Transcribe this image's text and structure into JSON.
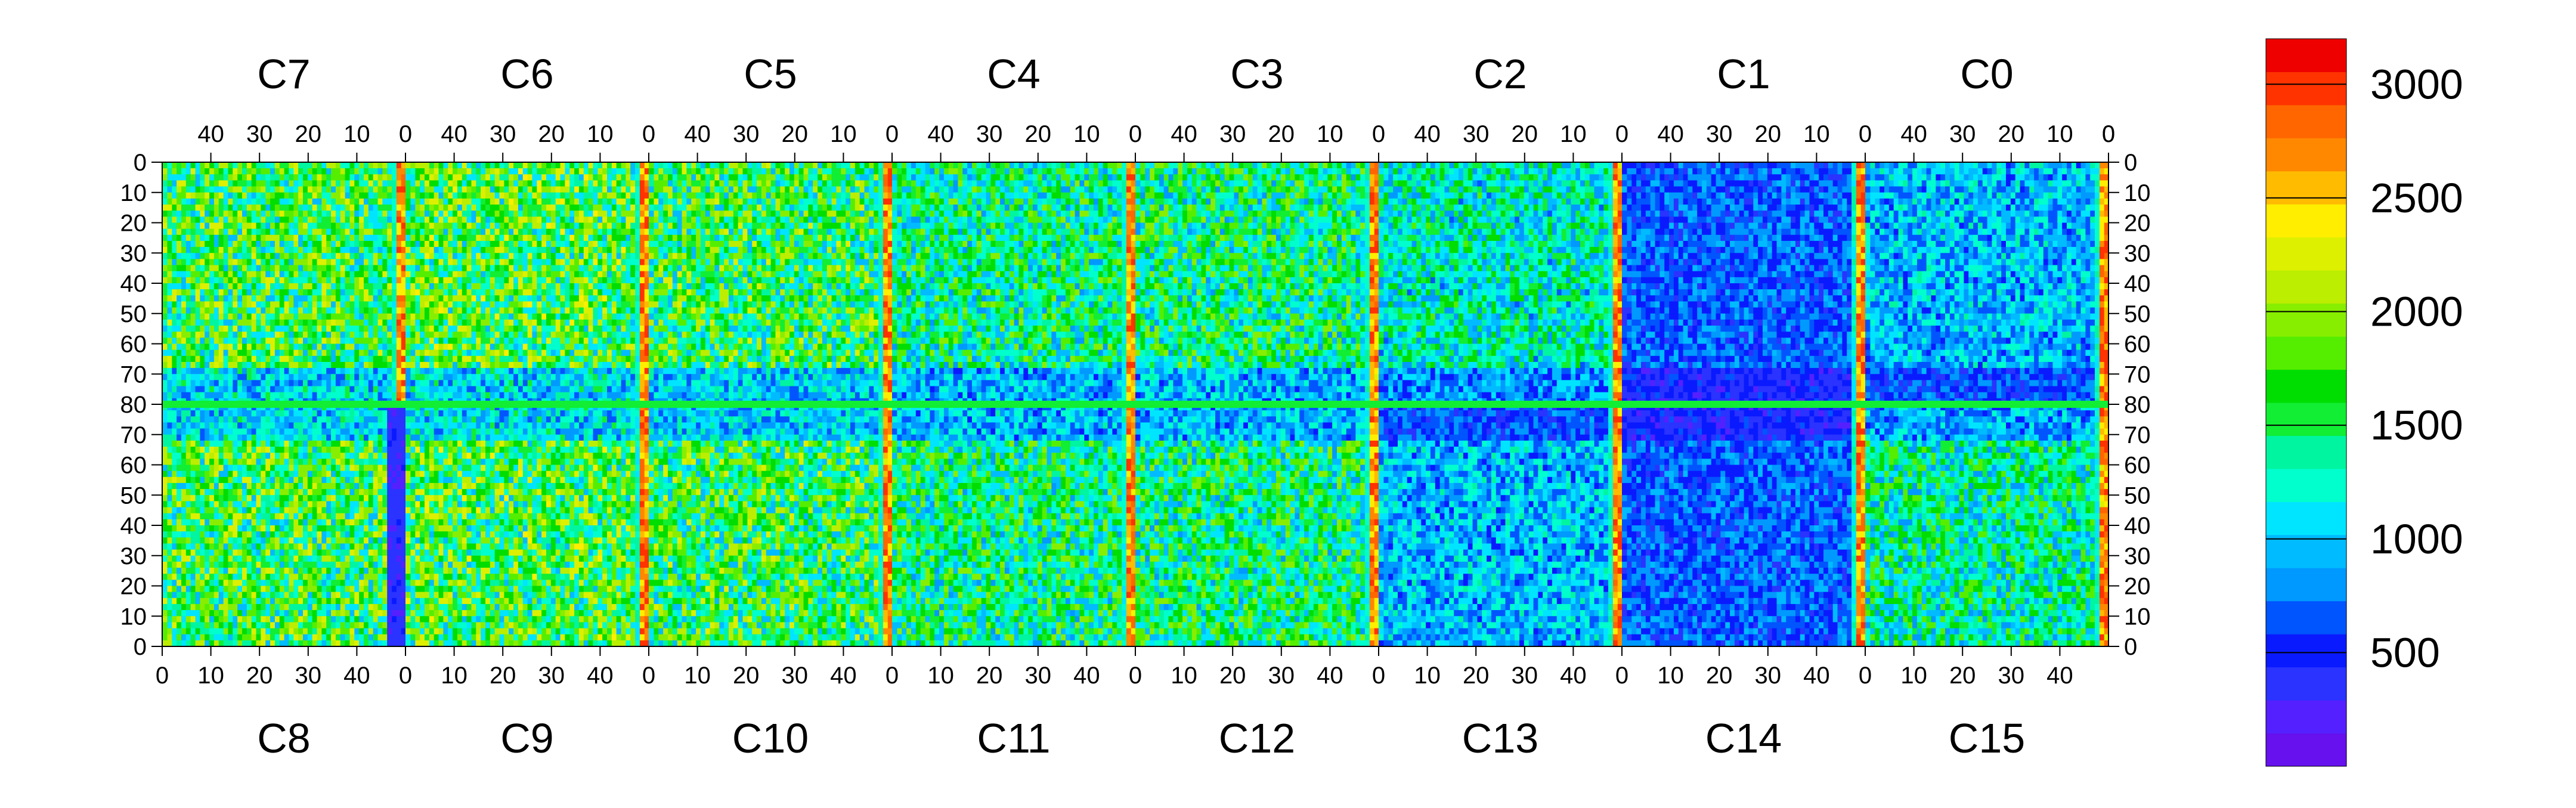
{
  "chart_data": {
    "type": "heatmap",
    "title": "",
    "zlim": [
      0,
      3200
    ],
    "top_chip_labels": [
      "C7",
      "C6",
      "C5",
      "C4",
      "C3",
      "C2",
      "C1",
      "C0"
    ],
    "bottom_chip_labels": [
      "C8",
      "C9",
      "C10",
      "C11",
      "C12",
      "C13",
      "C14",
      "C15"
    ],
    "top_x_ticks": [
      "40",
      "30",
      "20",
      "10",
      "0"
    ],
    "bottom_x_ticks": [
      "0",
      "10",
      "20",
      "30",
      "40"
    ],
    "y_ticks": [
      "0",
      "10",
      "20",
      "30",
      "40",
      "50",
      "60",
      "70",
      "80",
      "70",
      "60",
      "50",
      "40",
      "30",
      "20",
      "10",
      "0"
    ],
    "colorbar_ticks": [
      {
        "value": 3000,
        "label": "3000"
      },
      {
        "value": 2500,
        "label": "2500"
      },
      {
        "value": 2000,
        "label": "2000"
      },
      {
        "value": 1500,
        "label": "1500"
      },
      {
        "value": 1000,
        "label": "1000"
      },
      {
        "value": 500,
        "label": "500"
      }
    ],
    "colorbar_colors": [
      "#6611ee",
      "#5520ff",
      "#2a33ff",
      "#0a1aff",
      "#0055ff",
      "#0099ff",
      "#00bbff",
      "#00e5ff",
      "#00ffcc",
      "#00f5a0",
      "#11ee33",
      "#00dd00",
      "#55ee00",
      "#88ee00",
      "#bbee00",
      "#ddf000",
      "#ffee00",
      "#ffbb00",
      "#ff8800",
      "#ff6600",
      "#ff3300",
      "#ee0000"
    ],
    "chip_mean_levels": {
      "C7": 1700,
      "C6": 1750,
      "C5": 1650,
      "C4": 1450,
      "C3": 1500,
      "C2": 1300,
      "C1": 700,
      "C0": 1000,
      "C8": 1700,
      "C9": 1750,
      "C10": 1650,
      "C11": 1500,
      "C12": 1500,
      "C13": 1000,
      "C14": 700,
      "C15": 1400
    },
    "hot_columns": [
      "0"
    ],
    "hot_column_level": 2900,
    "grid": false,
    "legend": "colorbar right"
  }
}
